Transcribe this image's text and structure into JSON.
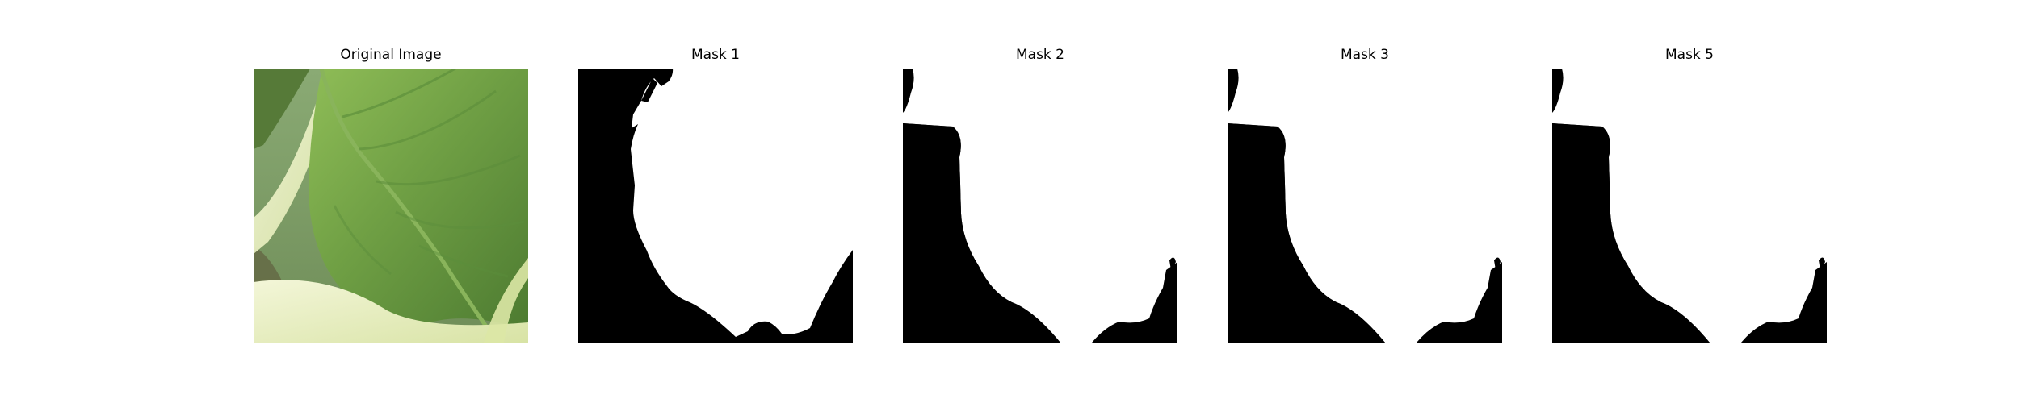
{
  "figure": {
    "panels": [
      {
        "title": "Original Image",
        "kind": "photo"
      },
      {
        "title": "Mask 1",
        "kind": "mask"
      },
      {
        "title": "Mask 2",
        "kind": "mask"
      },
      {
        "title": "Mask 3",
        "kind": "mask"
      },
      {
        "title": "Mask 5",
        "kind": "mask"
      }
    ]
  },
  "colors": {
    "background": "#ffffff",
    "mask_foreground": "#ffffff",
    "mask_background": "#000000",
    "leaf_dark": "#4f7f32",
    "leaf_mid": "#6f9f44",
    "leaf_light": "#a8c76b",
    "stem": "#e6ebb5"
  }
}
